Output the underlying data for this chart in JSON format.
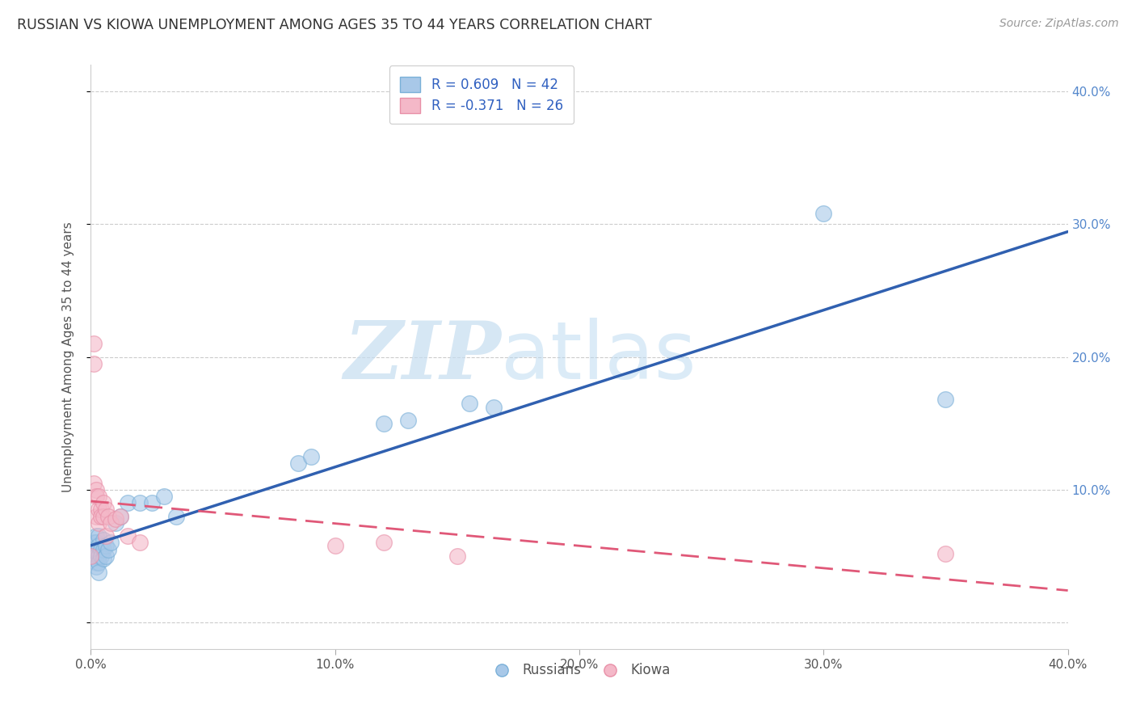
{
  "title": "RUSSIAN VS KIOWA UNEMPLOYMENT AMONG AGES 35 TO 44 YEARS CORRELATION CHART",
  "source": "Source: ZipAtlas.com",
  "ylabel": "Unemployment Among Ages 35 to 44 years",
  "xlim": [
    0.0,
    0.4
  ],
  "ylim": [
    -0.02,
    0.42
  ],
  "xticks": [
    0.0,
    0.1,
    0.2,
    0.3,
    0.4
  ],
  "yticks": [
    0.0,
    0.1,
    0.2,
    0.3,
    0.4
  ],
  "xtick_labels": [
    "0.0%",
    "10.0%",
    "20.0%",
    "30.0%",
    "40.0%"
  ],
  "ytick_labels_right": [
    "",
    "10.0%",
    "20.0%",
    "30.0%",
    "40.0%"
  ],
  "grid_color": "#cccccc",
  "background_color": "#ffffff",
  "russian_color": "#a8c8e8",
  "russian_edge_color": "#7ab0d8",
  "russian_line_color": "#3060b0",
  "kiowa_color": "#f4b8c8",
  "kiowa_edge_color": "#e890a8",
  "kiowa_line_color": "#e05878",
  "legend_text_color": "#3060c0",
  "watermark_zip": "ZIP",
  "watermark_atlas": "atlas",
  "russians_x": [
    0.0,
    0.0,
    0.001,
    0.001,
    0.001,
    0.001,
    0.001,
    0.002,
    0.002,
    0.002,
    0.002,
    0.002,
    0.002,
    0.003,
    0.003,
    0.003,
    0.003,
    0.003,
    0.004,
    0.004,
    0.005,
    0.005,
    0.005,
    0.006,
    0.006,
    0.007,
    0.008,
    0.01,
    0.012,
    0.015,
    0.02,
    0.025,
    0.03,
    0.035,
    0.085,
    0.09,
    0.12,
    0.13,
    0.155,
    0.165,
    0.3,
    0.35
  ],
  "russians_y": [
    0.05,
    0.055,
    0.06,
    0.058,
    0.052,
    0.048,
    0.055,
    0.065,
    0.06,
    0.055,
    0.05,
    0.045,
    0.042,
    0.065,
    0.058,
    0.05,
    0.045,
    0.038,
    0.055,
    0.05,
    0.062,
    0.055,
    0.048,
    0.058,
    0.05,
    0.055,
    0.06,
    0.075,
    0.08,
    0.09,
    0.09,
    0.09,
    0.095,
    0.08,
    0.12,
    0.125,
    0.15,
    0.152,
    0.165,
    0.162,
    0.308,
    0.168
  ],
  "kiowa_x": [
    0.0,
    0.001,
    0.001,
    0.001,
    0.002,
    0.002,
    0.002,
    0.003,
    0.003,
    0.003,
    0.004,
    0.004,
    0.005,
    0.005,
    0.006,
    0.006,
    0.007,
    0.008,
    0.01,
    0.012,
    0.015,
    0.02,
    0.1,
    0.12,
    0.15,
    0.35
  ],
  "kiowa_y": [
    0.05,
    0.21,
    0.195,
    0.105,
    0.1,
    0.095,
    0.08,
    0.095,
    0.085,
    0.075,
    0.085,
    0.08,
    0.09,
    0.08,
    0.085,
    0.065,
    0.08,
    0.075,
    0.078,
    0.08,
    0.065,
    0.06,
    0.058,
    0.06,
    0.05,
    0.052
  ]
}
